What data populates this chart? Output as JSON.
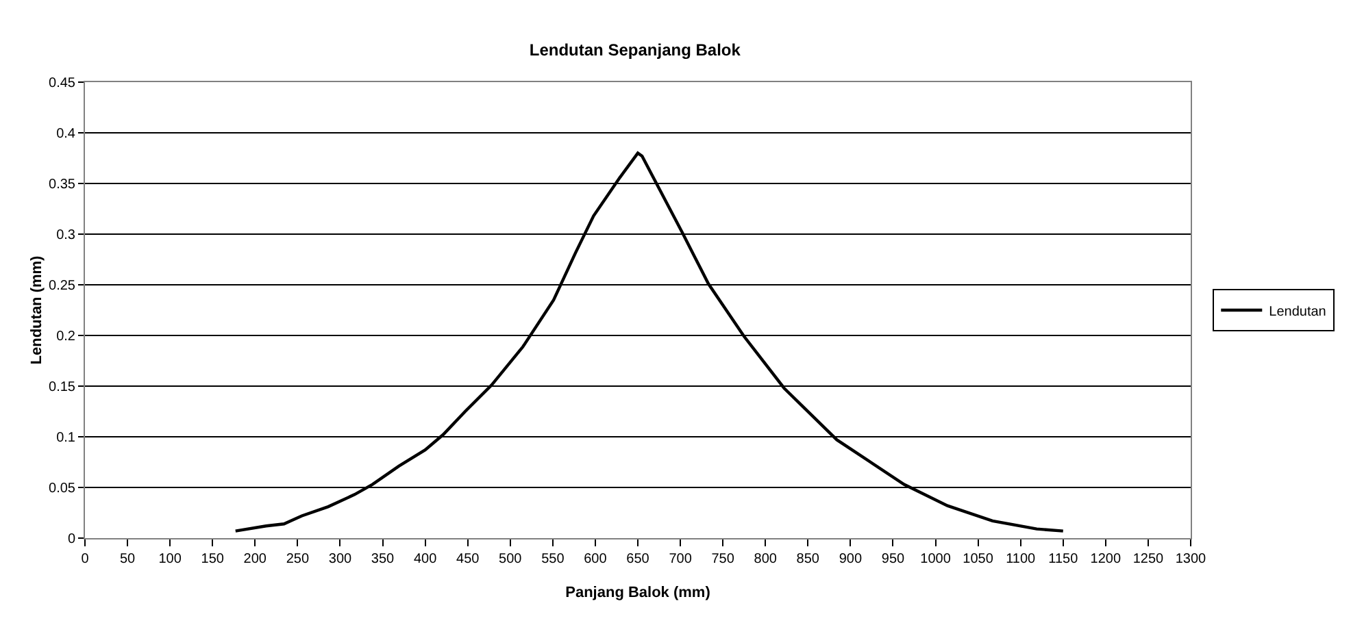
{
  "chart_data": {
    "type": "line",
    "title": "Lendutan Sepanjang Balok",
    "xlabel": "Panjang Balok (mm)",
    "ylabel": "Lendutan (mm)",
    "series": [
      {
        "name": "Lendutan",
        "color": "#000000",
        "x": [
          177,
          213,
          234,
          255,
          286,
          317,
          338,
          369,
          400,
          421,
          447,
          478,
          515,
          551,
          577,
          598,
          629,
          650,
          655,
          702,
          733,
          775,
          822,
          884,
          963,
          1014,
          1067,
          1119,
          1150
        ],
        "values": [
          0.007,
          0.012,
          0.014,
          0.022,
          0.031,
          0.043,
          0.053,
          0.071,
          0.087,
          0.102,
          0.125,
          0.151,
          0.189,
          0.235,
          0.282,
          0.318,
          0.356,
          0.38,
          0.377,
          0.302,
          0.251,
          0.199,
          0.148,
          0.097,
          0.053,
          0.032,
          0.017,
          0.009,
          0.007
        ]
      }
    ],
    "xlim": [
      0,
      1300
    ],
    "xticks": [
      0,
      50,
      100,
      150,
      200,
      250,
      300,
      350,
      400,
      450,
      500,
      550,
      600,
      650,
      700,
      750,
      800,
      850,
      900,
      950,
      1000,
      1050,
      1100,
      1150,
      1200,
      1250,
      1300
    ],
    "ylim": [
      0,
      0.45
    ],
    "yticks": [
      0,
      0.05,
      0.1,
      0.15,
      0.2,
      0.25,
      0.3,
      0.35,
      0.4,
      0.45
    ],
    "grid": "y",
    "legend": "right",
    "marker": "none",
    "line_style": "solid"
  }
}
